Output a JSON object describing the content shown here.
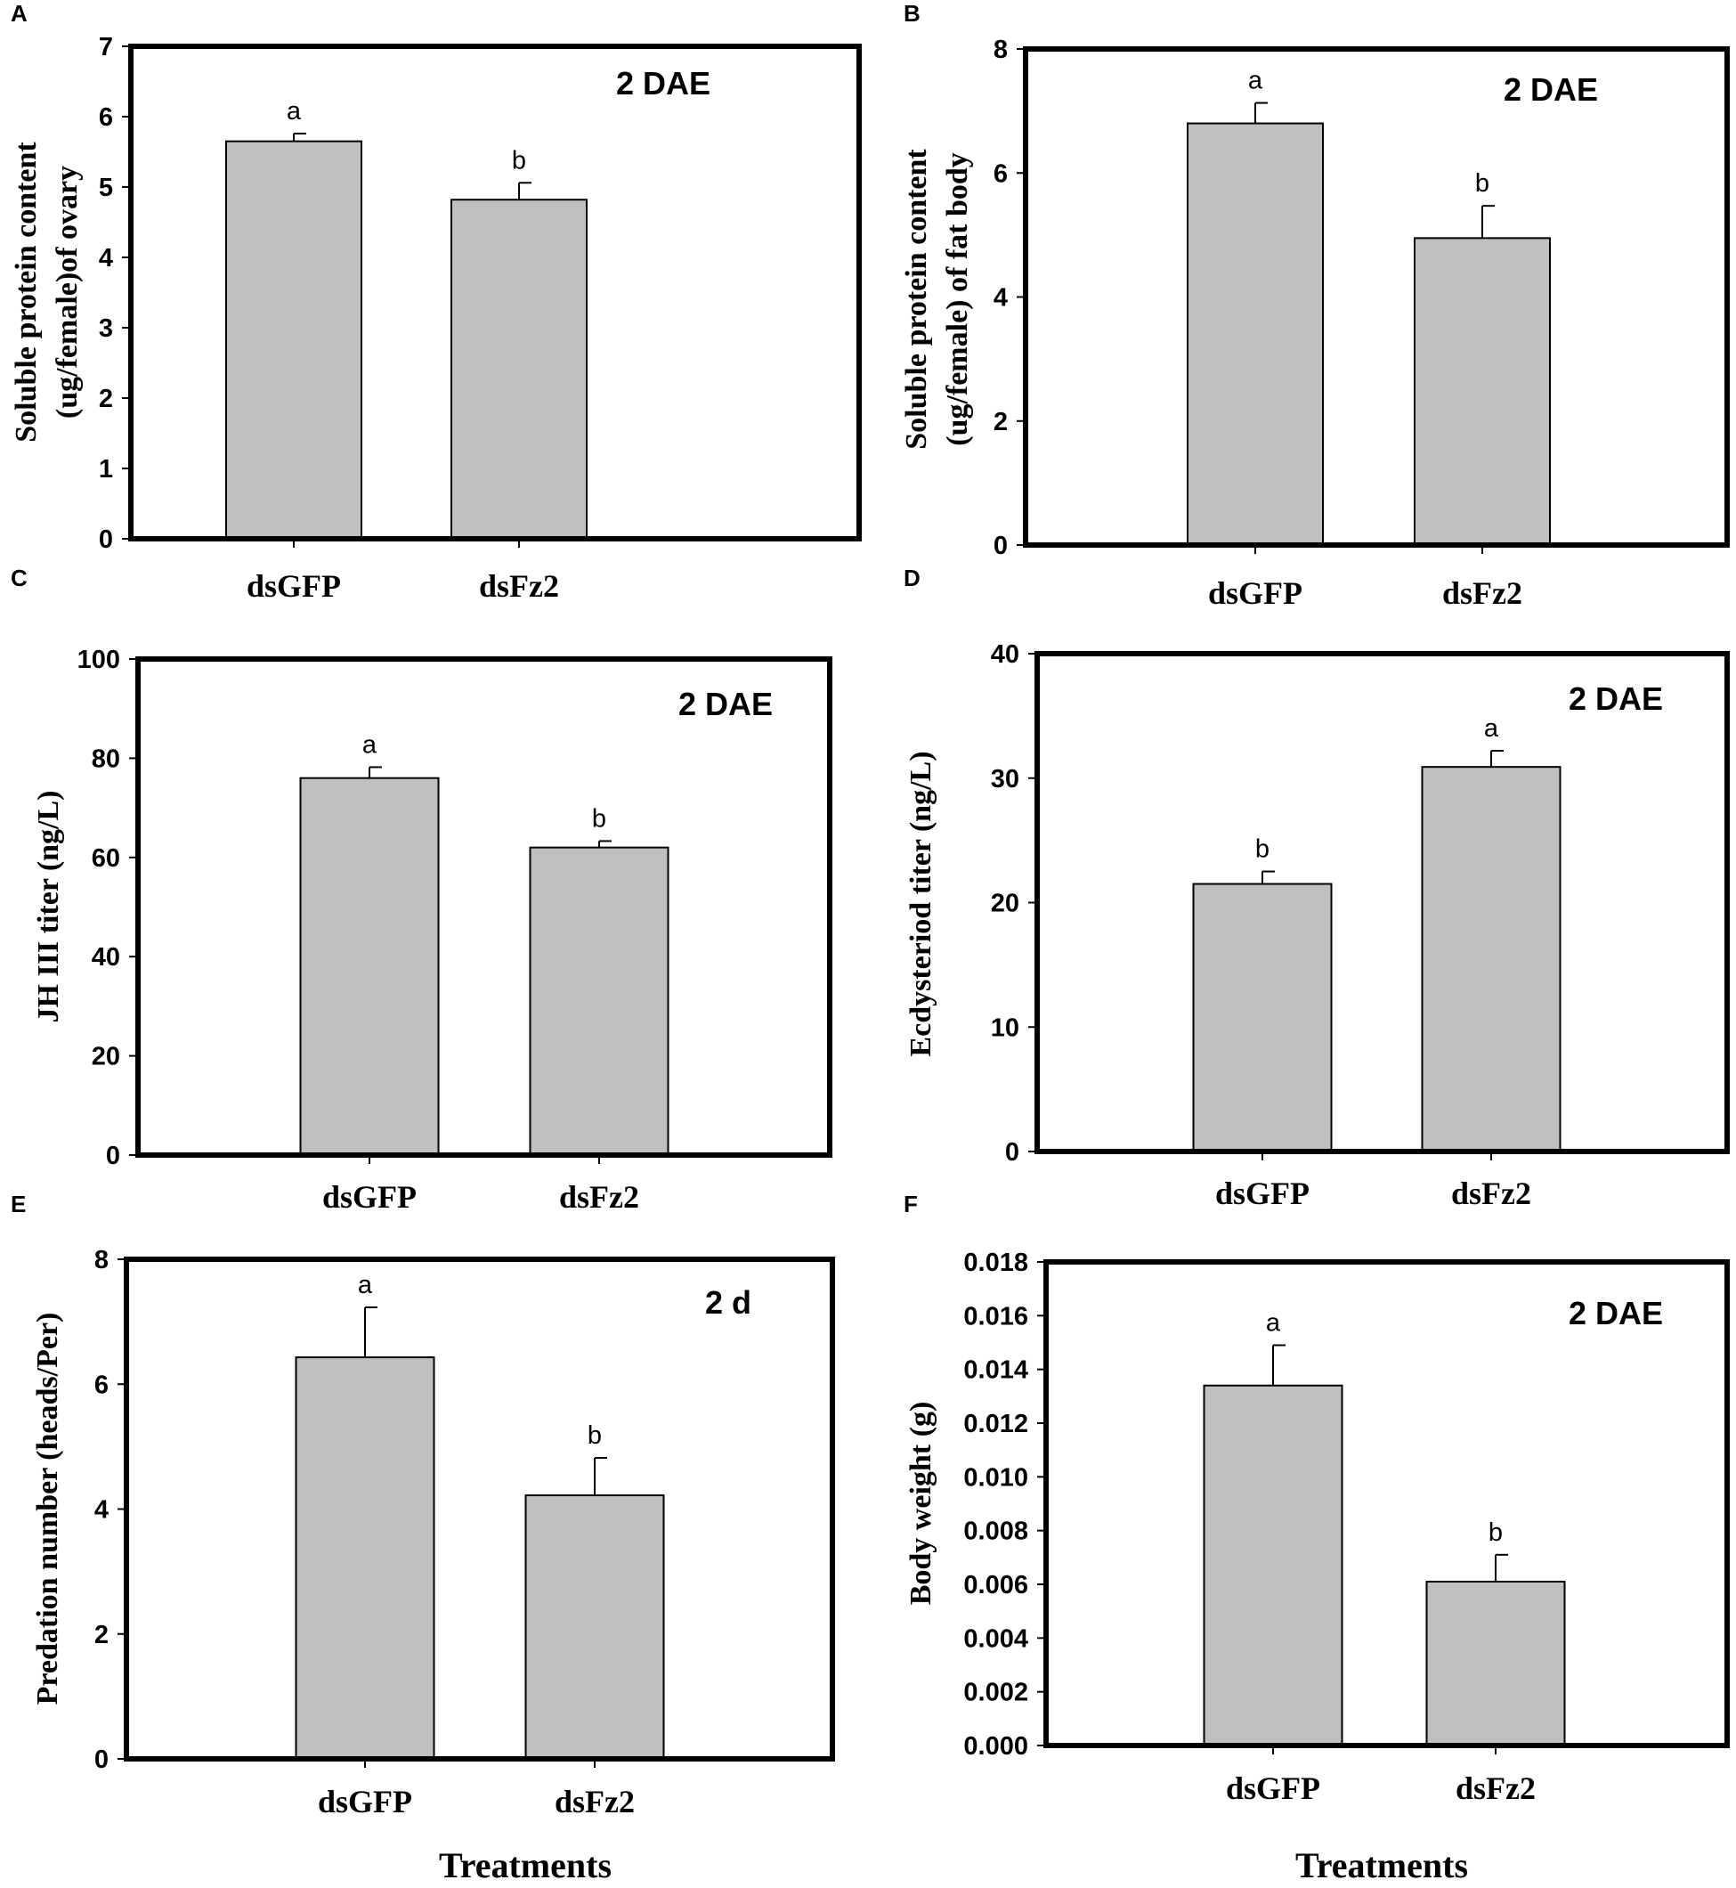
{
  "chart_data": [
    {
      "panel": "A",
      "type": "bar",
      "title": "",
      "annotation": "2 DAE",
      "xlabel": "",
      "ylabel": [
        "Soluble protein content",
        "(ug/female)of ovary"
      ],
      "categories": [
        "dsGFP",
        "dsFz2"
      ],
      "values": [
        5.65,
        4.82
      ],
      "errors": [
        0.11,
        0.24
      ],
      "significance": [
        "a",
        "b"
      ],
      "ylim": [
        0,
        7
      ],
      "yticks": [
        0,
        1,
        2,
        3,
        4,
        5,
        6,
        7
      ],
      "ytick_labels": [
        "0",
        "1",
        "2",
        "3",
        "4",
        "5",
        "6",
        "7"
      ]
    },
    {
      "panel": "B",
      "type": "bar",
      "title": "",
      "annotation": "2 DAE",
      "xlabel": "",
      "ylabel": [
        "Soluble protein content",
        "(ug/female) of fat body"
      ],
      "categories": [
        "dsGFP",
        "dsFz2"
      ],
      "values": [
        6.8,
        4.95
      ],
      "errors": [
        0.33,
        0.52
      ],
      "significance": [
        "a",
        "b"
      ],
      "ylim": [
        0,
        8
      ],
      "yticks": [
        0,
        2,
        4,
        6,
        8
      ],
      "ytick_labels": [
        "0",
        "2",
        "4",
        "6",
        "8"
      ]
    },
    {
      "panel": "C",
      "type": "bar",
      "title": "",
      "annotation": "2 DAE",
      "xlabel": "",
      "ylabel": [
        "JH III titer (ng/L)"
      ],
      "categories": [
        "dsGFP",
        "dsFz2"
      ],
      "values": [
        76,
        62
      ],
      "errors": [
        2.2,
        1.3
      ],
      "significance": [
        "a",
        "b"
      ],
      "ylim": [
        0,
        100
      ],
      "yticks": [
        0,
        20,
        40,
        60,
        80,
        100
      ],
      "ytick_labels": [
        "0",
        "20",
        "40",
        "60",
        "80",
        "100"
      ]
    },
    {
      "panel": "D",
      "type": "bar",
      "title": "",
      "annotation": "2 DAE",
      "xlabel": "",
      "ylabel": [
        "Ecdysteriod titer (ng/L)"
      ],
      "categories": [
        "dsGFP",
        "dsFz2"
      ],
      "values": [
        21.5,
        30.9
      ],
      "errors": [
        1.0,
        1.3
      ],
      "significance": [
        "b",
        "a"
      ],
      "ylim": [
        0,
        40
      ],
      "yticks": [
        0,
        10,
        20,
        30,
        40
      ],
      "ytick_labels": [
        "0",
        "10",
        "20",
        "30",
        "40"
      ]
    },
    {
      "panel": "E",
      "type": "bar",
      "title": "",
      "annotation": "2 d",
      "xlabel": "Treatments",
      "ylabel": [
        "Predation number (heads/Per)"
      ],
      "categories": [
        "dsGFP",
        "dsFz2"
      ],
      "values": [
        6.43,
        4.22
      ],
      "errors": [
        0.8,
        0.6
      ],
      "significance": [
        "a",
        "b"
      ],
      "ylim": [
        0,
        8
      ],
      "yticks": [
        0,
        2,
        4,
        6,
        8
      ],
      "ytick_labels": [
        "0",
        "2",
        "4",
        "6",
        "8"
      ]
    },
    {
      "panel": "F",
      "type": "bar",
      "title": "",
      "annotation": "2 DAE",
      "xlabel": "Treatments",
      "ylabel": [
        "Body weight (g)"
      ],
      "categories": [
        "dsGFP",
        "dsFz2"
      ],
      "values": [
        0.0134,
        0.0061
      ],
      "errors": [
        0.0015,
        0.001
      ],
      "significance": [
        "a",
        "b"
      ],
      "ylim": [
        0,
        0.018
      ],
      "yticks": [
        0,
        0.002,
        0.004,
        0.006,
        0.008,
        0.01,
        0.012,
        0.014,
        0.016,
        0.018
      ],
      "ytick_labels": [
        "0.000",
        "0.002",
        "0.004",
        "0.006",
        "0.008",
        "0.010",
        "0.012",
        "0.014",
        "0.016",
        "0.018"
      ]
    }
  ]
}
